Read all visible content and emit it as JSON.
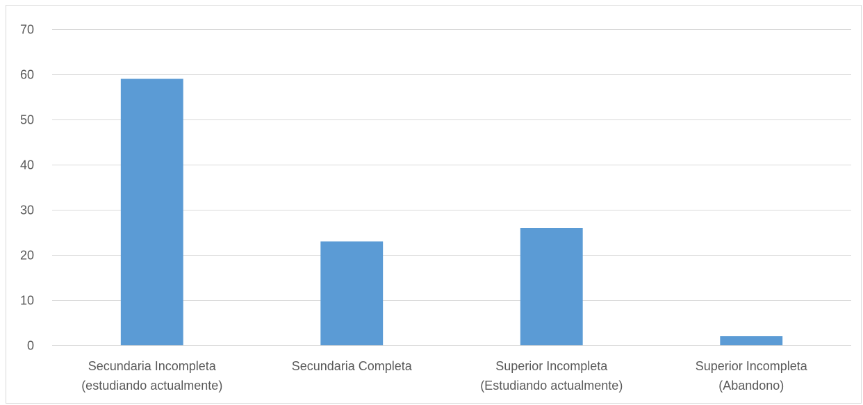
{
  "chart_data": {
    "type": "bar",
    "categories": [
      [
        "Secundaria Incompleta",
        "(estudiando actualmente)"
      ],
      [
        "Secundaria Completa"
      ],
      [
        "Superior Incompleta",
        "(Estudiando actualmente)"
      ],
      [
        "Superior Incompleta",
        "(Abandono)"
      ]
    ],
    "values": [
      59,
      23,
      26,
      2
    ],
    "title": "",
    "xlabel": "",
    "ylabel": "",
    "ylim": [
      0,
      70
    ],
    "yticks": [
      0,
      10,
      20,
      30,
      40,
      50,
      60,
      70
    ],
    "grid": true,
    "legend": "none",
    "colors": {
      "bar": "#5b9bd5",
      "grid": "#d9d9d9",
      "axis": "#d9d9d9",
      "text": "#595959"
    }
  }
}
